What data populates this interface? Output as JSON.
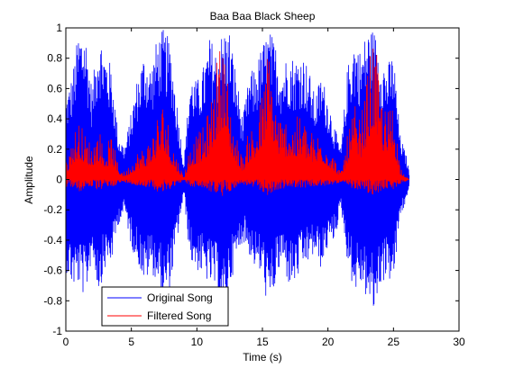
{
  "chart_data": {
    "type": "line",
    "title": "Baa Baa Black Sheep",
    "xlabel": "Time (s)",
    "ylabel": "Amplitude",
    "xlim": [
      0,
      30
    ],
    "ylim": [
      -1,
      1
    ],
    "xticks": [
      "0",
      "5",
      "10",
      "15",
      "20",
      "25",
      "30"
    ],
    "yticks": [
      "1",
      "0.8",
      "0.6",
      "0.4",
      "0.2",
      "0",
      "-0.2",
      "-0.4",
      "-0.6",
      "-0.8",
      "-1"
    ],
    "grid": false,
    "legend_position": "bottom-left",
    "series": [
      {
        "name": "Original Song",
        "color": "#0000ff",
        "duration": 26.2,
        "envelope": [
          [
            0.0,
            0.55,
            -0.6
          ],
          [
            0.5,
            0.7,
            -0.72
          ],
          [
            1.0,
            1.0,
            -0.7
          ],
          [
            1.5,
            1.0,
            -0.8
          ],
          [
            2.0,
            0.6,
            -0.5
          ],
          [
            2.5,
            1.0,
            -0.75
          ],
          [
            3.0,
            0.85,
            -0.6
          ],
          [
            3.5,
            0.75,
            -0.55
          ],
          [
            4.0,
            0.3,
            -0.3
          ],
          [
            4.5,
            0.22,
            -0.22
          ],
          [
            5.0,
            0.45,
            -0.45
          ],
          [
            5.5,
            0.7,
            -0.55
          ],
          [
            6.0,
            0.85,
            -0.7
          ],
          [
            6.5,
            0.75,
            -0.6
          ],
          [
            7.0,
            0.95,
            -0.7
          ],
          [
            7.5,
            1.0,
            -0.82
          ],
          [
            8.0,
            0.9,
            -0.7
          ],
          [
            8.5,
            0.5,
            -0.4
          ],
          [
            9.0,
            0.1,
            -0.1
          ],
          [
            9.5,
            0.7,
            -0.55
          ],
          [
            10.0,
            0.65,
            -0.6
          ],
          [
            10.5,
            0.75,
            -0.65
          ],
          [
            11.0,
            0.95,
            -0.7
          ],
          [
            11.5,
            0.85,
            -0.75
          ],
          [
            12.0,
            1.0,
            -0.95
          ],
          [
            12.5,
            1.0,
            -0.7
          ],
          [
            13.0,
            0.7,
            -0.55
          ],
          [
            13.5,
            0.4,
            -0.4
          ],
          [
            14.0,
            0.7,
            -0.5
          ],
          [
            14.5,
            0.75,
            -0.6
          ],
          [
            15.0,
            0.9,
            -0.65
          ],
          [
            15.5,
            1.0,
            -0.9
          ],
          [
            16.0,
            0.9,
            -0.7
          ],
          [
            16.5,
            0.75,
            -0.55
          ],
          [
            17.0,
            0.85,
            -0.7
          ],
          [
            17.5,
            0.8,
            -0.7
          ],
          [
            18.0,
            0.85,
            -0.6
          ],
          [
            18.5,
            0.75,
            -0.55
          ],
          [
            19.0,
            0.55,
            -0.5
          ],
          [
            19.5,
            0.7,
            -0.6
          ],
          [
            20.0,
            0.55,
            -0.45
          ],
          [
            20.5,
            0.35,
            -0.4
          ],
          [
            21.0,
            0.2,
            -0.2
          ],
          [
            21.5,
            0.75,
            -0.55
          ],
          [
            22.0,
            0.95,
            -0.75
          ],
          [
            22.5,
            0.85,
            -0.7
          ],
          [
            23.0,
            1.0,
            -0.8
          ],
          [
            23.5,
            1.0,
            -0.9
          ],
          [
            24.0,
            0.85,
            -0.7
          ],
          [
            24.5,
            0.75,
            -0.65
          ],
          [
            25.0,
            0.85,
            -0.7
          ],
          [
            25.5,
            0.3,
            -0.25
          ],
          [
            26.0,
            0.15,
            -0.15
          ],
          [
            26.2,
            0.05,
            -0.05
          ]
        ]
      },
      {
        "name": "Filtered Song",
        "color": "#ff0000",
        "duration": 26.2,
        "envelope": [
          [
            0.0,
            0.1,
            -0.05
          ],
          [
            0.5,
            0.3,
            -0.05
          ],
          [
            1.0,
            0.4,
            -0.1
          ],
          [
            1.5,
            0.3,
            -0.05
          ],
          [
            2.0,
            0.25,
            -0.05
          ],
          [
            2.5,
            0.35,
            -0.08
          ],
          [
            3.0,
            0.22,
            -0.05
          ],
          [
            3.5,
            0.3,
            -0.05
          ],
          [
            4.0,
            0.1,
            -0.03
          ],
          [
            4.5,
            0.05,
            -0.02
          ],
          [
            5.0,
            0.12,
            -0.03
          ],
          [
            5.5,
            0.2,
            -0.05
          ],
          [
            6.0,
            0.22,
            -0.05
          ],
          [
            6.5,
            0.3,
            -0.05
          ],
          [
            7.0,
            0.45,
            -0.08
          ],
          [
            7.5,
            0.55,
            -0.1
          ],
          [
            8.0,
            0.3,
            -0.06
          ],
          [
            8.5,
            0.15,
            -0.03
          ],
          [
            9.0,
            0.02,
            -0.01
          ],
          [
            9.5,
            0.25,
            -0.05
          ],
          [
            10.0,
            0.3,
            -0.05
          ],
          [
            10.5,
            0.35,
            -0.06
          ],
          [
            11.0,
            0.5,
            -0.08
          ],
          [
            11.5,
            0.8,
            -0.1
          ],
          [
            12.0,
            1.0,
            -0.12
          ],
          [
            12.5,
            0.55,
            -0.08
          ],
          [
            13.0,
            0.3,
            -0.05
          ],
          [
            13.5,
            0.15,
            -0.03
          ],
          [
            14.0,
            0.35,
            -0.05
          ],
          [
            14.5,
            0.4,
            -0.06
          ],
          [
            15.0,
            0.6,
            -0.08
          ],
          [
            15.5,
            0.95,
            -0.12
          ],
          [
            16.0,
            0.55,
            -0.08
          ],
          [
            16.5,
            0.4,
            -0.06
          ],
          [
            17.0,
            0.45,
            -0.06
          ],
          [
            17.5,
            0.4,
            -0.05
          ],
          [
            18.0,
            0.45,
            -0.06
          ],
          [
            18.5,
            0.35,
            -0.05
          ],
          [
            19.0,
            0.3,
            -0.05
          ],
          [
            19.5,
            0.35,
            -0.05
          ],
          [
            20.0,
            0.25,
            -0.04
          ],
          [
            20.5,
            0.15,
            -0.03
          ],
          [
            21.0,
            0.05,
            -0.02
          ],
          [
            21.5,
            0.3,
            -0.05
          ],
          [
            22.0,
            0.5,
            -0.08
          ],
          [
            22.5,
            0.4,
            -0.06
          ],
          [
            23.0,
            0.7,
            -0.1
          ],
          [
            23.5,
            1.0,
            -0.12
          ],
          [
            24.0,
            0.6,
            -0.08
          ],
          [
            24.5,
            0.45,
            -0.06
          ],
          [
            25.0,
            0.55,
            -0.07
          ],
          [
            25.5,
            0.1,
            -0.03
          ],
          [
            26.0,
            0.02,
            -0.01
          ],
          [
            26.2,
            0.0,
            0.0
          ]
        ]
      }
    ]
  }
}
